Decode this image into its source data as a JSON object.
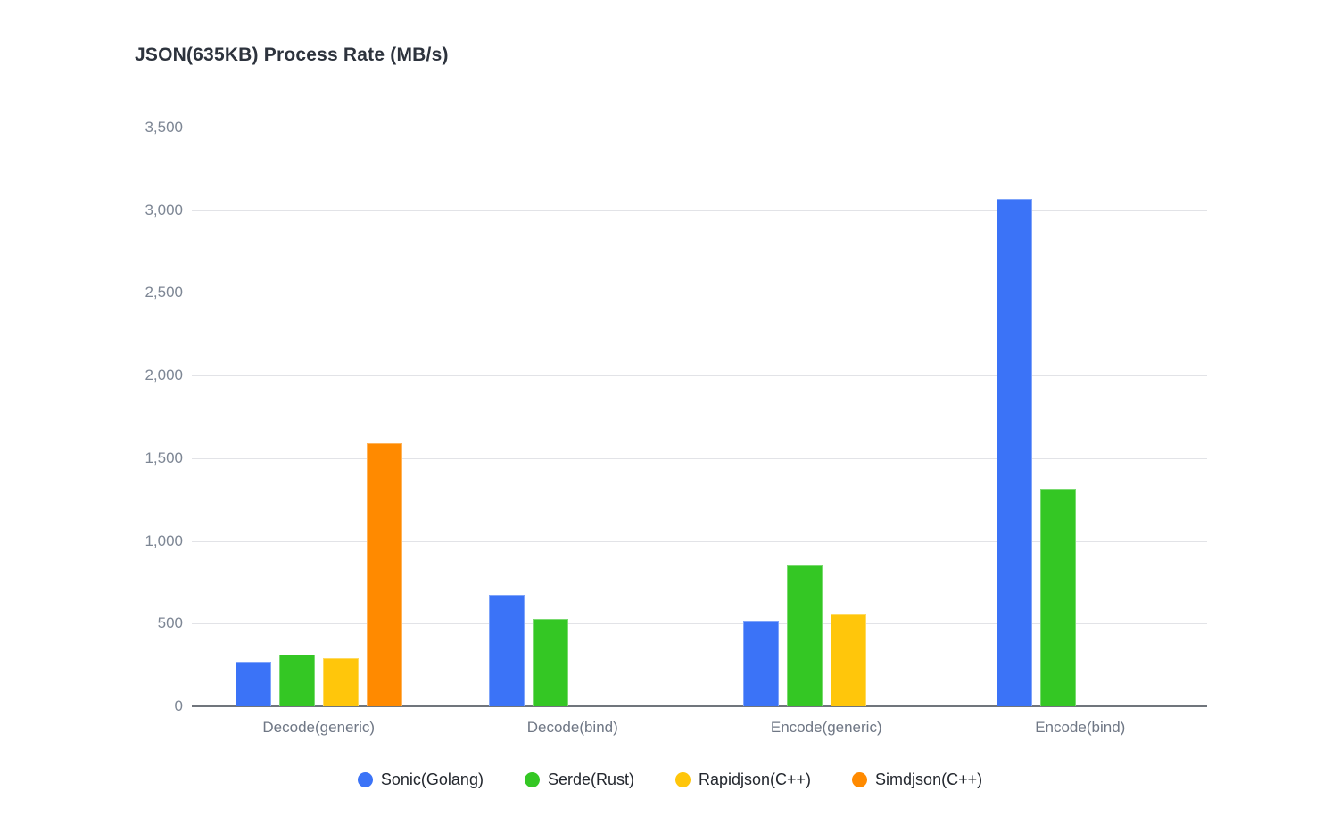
{
  "chart_data": {
    "type": "bar",
    "title": "JSON(635KB) Process Rate (MB/s)",
    "categories": [
      "Decode(generic)",
      "Decode(bind)",
      "Encode(generic)",
      "Encode(bind)"
    ],
    "series": [
      {
        "name": "Sonic(Golang)",
        "color": "#3B73F7",
        "values": [
          268,
          672,
          518,
          3070
        ]
      },
      {
        "name": "Serde(Rust)",
        "color": "#34C724",
        "values": [
          311,
          527,
          852,
          1314
        ]
      },
      {
        "name": "Rapidjson(C++)",
        "color": "#FFC60B",
        "values": [
          293,
          0,
          556,
          0
        ]
      },
      {
        "name": "Simdjson(C++)",
        "color": "#FF8A00",
        "values": [
          1592,
          0,
          0,
          0
        ]
      }
    ],
    "ylim": [
      0,
      3500
    ],
    "ytick_values": [
      0,
      500,
      1000,
      1500,
      2000,
      2500,
      3000,
      3500
    ],
    "ytick_labels": [
      "0",
      "500",
      "1,000",
      "1,500",
      "2,000",
      "2,500",
      "3,000",
      "3,500"
    ],
    "xlabel": "",
    "ylabel": "",
    "grid": true,
    "legend_position": "bottom",
    "colors": {
      "background": "#ffffff",
      "gridline": "#e2e3e7",
      "axis_line": "#70757c",
      "title_text": "#2d333d",
      "ytick_text": "#7d8694",
      "xtick_text": "#6f7785",
      "legend_text": "#23272e"
    }
  }
}
